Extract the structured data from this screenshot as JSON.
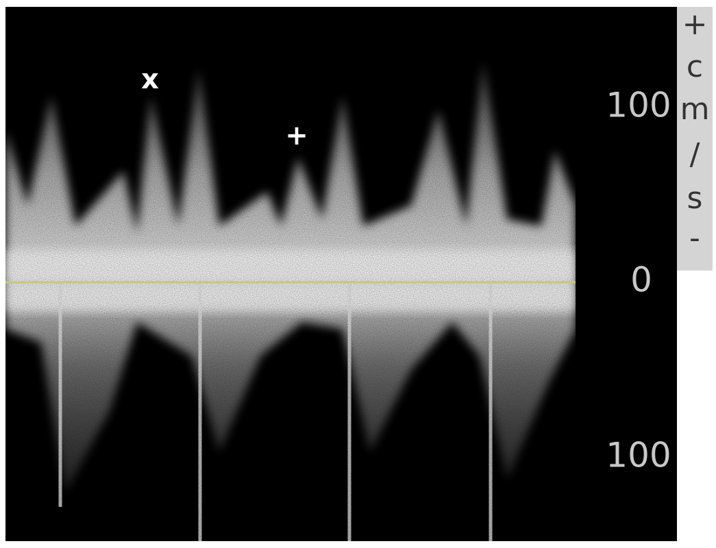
{
  "scale": {
    "ticks": [
      "100",
      "0",
      "100"
    ],
    "unit_letters": [
      "+",
      "c",
      "m",
      "/",
      "s",
      "-"
    ]
  },
  "markers": [
    "x",
    "+"
  ]
}
